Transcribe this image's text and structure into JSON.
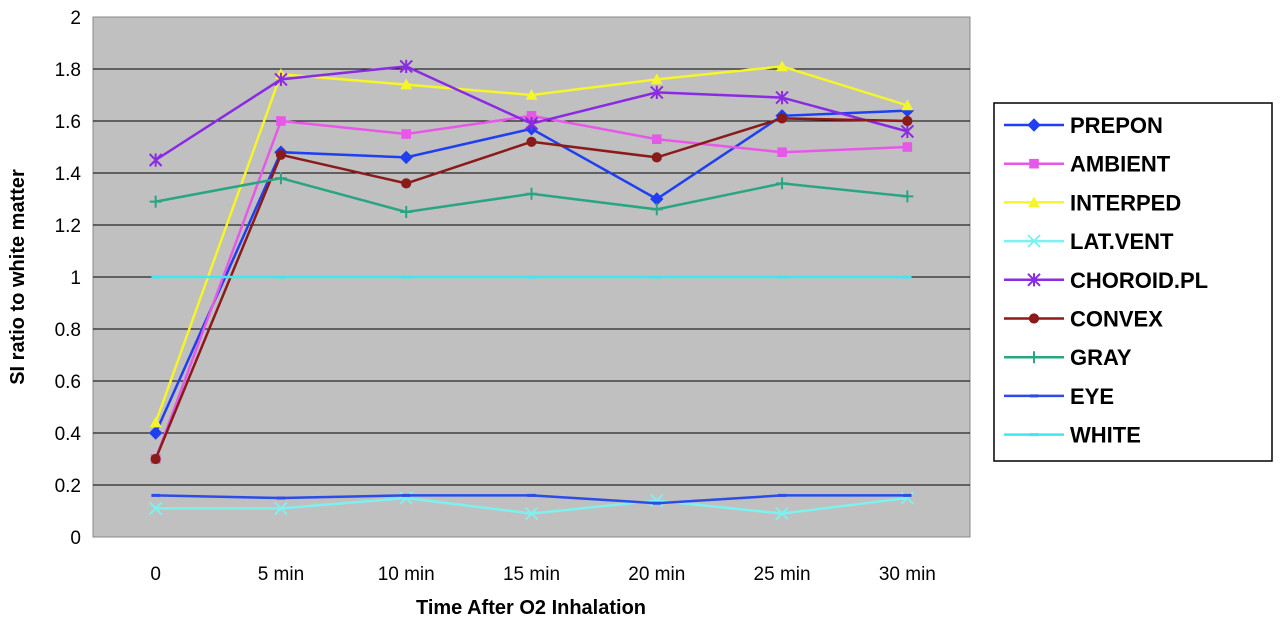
{
  "chart_data": {
    "type": "line",
    "title": "",
    "xlabel": "Time After O2 Inhalation",
    "ylabel": "SI ratio to white matter",
    "ylim": [
      0,
      2
    ],
    "yticks": [
      "0",
      "0.2",
      "0.4",
      "0.6",
      "0.8",
      "1",
      "1.2",
      "1.4",
      "1.6",
      "1.8",
      "2"
    ],
    "categories": [
      "0",
      "5 min",
      "10 min",
      "15 min",
      "20 min",
      "25 min",
      "30 min"
    ],
    "grid": "horizontal",
    "plot_background": "#c0c0c0",
    "legend_position": "right",
    "series": [
      {
        "name": "PREPON",
        "color": "#1f3ff0",
        "marker": "diamond",
        "values": [
          0.4,
          1.48,
          1.46,
          1.57,
          1.3,
          1.62,
          1.64
        ]
      },
      {
        "name": "AMBIENT",
        "color": "#e659e8",
        "marker": "square",
        "values": [
          0.3,
          1.6,
          1.55,
          1.62,
          1.53,
          1.48,
          1.5
        ]
      },
      {
        "name": "INTERPED",
        "color": "#f5f52a",
        "marker": "triangle",
        "values": [
          0.44,
          1.78,
          1.74,
          1.7,
          1.76,
          1.81,
          1.66
        ]
      },
      {
        "name": "LAT.VENT",
        "color": "#7ef0ee",
        "marker": "x",
        "values": [
          0.11,
          0.11,
          0.15,
          0.09,
          0.14,
          0.09,
          0.15
        ]
      },
      {
        "name": "CHOROID.PL",
        "color": "#8a2be2",
        "marker": "asterisk",
        "values": [
          1.45,
          1.76,
          1.81,
          1.59,
          1.71,
          1.69,
          1.56
        ]
      },
      {
        "name": "CONVEX",
        "color": "#8b1a1a",
        "marker": "circle",
        "values": [
          0.3,
          1.47,
          1.36,
          1.52,
          1.46,
          1.61,
          1.6
        ]
      },
      {
        "name": "GRAY",
        "color": "#2aa582",
        "marker": "plus",
        "values": [
          1.29,
          1.38,
          1.25,
          1.32,
          1.26,
          1.36,
          1.31
        ]
      },
      {
        "name": "EYE",
        "color": "#2b4ce6",
        "marker": "dash",
        "values": [
          0.16,
          0.15,
          0.16,
          0.16,
          0.13,
          0.16,
          0.16
        ]
      },
      {
        "name": "WHITE",
        "color": "#3fe8f0",
        "marker": "dash",
        "values": [
          1.0,
          1.0,
          1.0,
          1.0,
          1.0,
          1.0,
          1.0
        ]
      }
    ]
  }
}
